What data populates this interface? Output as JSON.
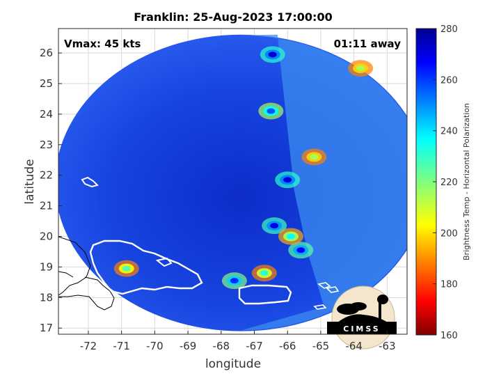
{
  "chart_data": {
    "type": "heatmap",
    "title": "Franklin: 25-Aug-2023 17:00:00",
    "xlabel": "longitude",
    "ylabel": "latitude",
    "xlim": [
      -72.9,
      -62.4
    ],
    "ylim": [
      16.8,
      26.8
    ],
    "x_ticks": [
      -72,
      -71,
      -70,
      -69,
      -68,
      -67,
      -66,
      -65,
      -64,
      -63
    ],
    "y_ticks": [
      17,
      18,
      19,
      20,
      21,
      22,
      23,
      24,
      25,
      26
    ],
    "grid": true,
    "annotations": {
      "vmax": "Vmax: 45 kts",
      "time_away": "01:11 away"
    },
    "colorbar": {
      "label": "Brightness Temp - Horizontal Polarization",
      "range": [
        160,
        280
      ],
      "ticks": [
        160,
        180,
        200,
        220,
        240,
        260,
        280
      ],
      "colormap": "jet"
    },
    "swath": {
      "center": [
        -67.4,
        21.75
      ],
      "lon_radius": 5.6,
      "lat_radius": 4.85
    },
    "storm_cells": [
      {
        "lon": -66.45,
        "lat": 25.95,
        "value": 170
      },
      {
        "lon": -66.0,
        "lat": 21.85,
        "value": 170
      },
      {
        "lon": -66.4,
        "lat": 20.35,
        "value": 172
      },
      {
        "lon": -65.6,
        "lat": 19.55,
        "value": 175
      },
      {
        "lon": -65.9,
        "lat": 20.0,
        "value": 205
      },
      {
        "lon": -67.6,
        "lat": 18.55,
        "value": 180
      },
      {
        "lon": -66.5,
        "lat": 24.1,
        "value": 185
      },
      {
        "lon": -70.85,
        "lat": 18.95,
        "value": 215
      },
      {
        "lon": -65.2,
        "lat": 22.6,
        "value": 225
      },
      {
        "lon": -63.8,
        "lat": 25.5,
        "value": 225
      },
      {
        "lon": -66.7,
        "lat": 18.8,
        "value": 210
      }
    ]
  },
  "logo": {
    "text": "CIMSS"
  }
}
